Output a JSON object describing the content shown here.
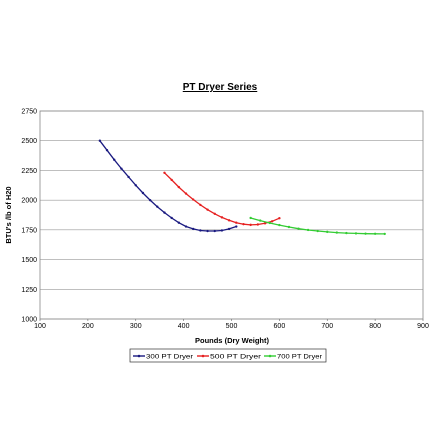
{
  "chart_data": {
    "type": "line",
    "title": "PT Dryer Series",
    "xlabel": "Pounds (Dry Weight)",
    "ylabel": "BTU's /lb of H20",
    "xlim": [
      100,
      900
    ],
    "ylim": [
      1000,
      2750
    ],
    "xticks": [
      100,
      200,
      300,
      400,
      500,
      600,
      700,
      800,
      900
    ],
    "yticks": [
      1000,
      1250,
      1500,
      1750,
      2000,
      2250,
      2500,
      2750
    ],
    "x_tick_labels": [
      "100",
      "200",
      "300",
      "400",
      "500",
      "600",
      "700",
      "800",
      "900"
    ],
    "y_tick_labels": [
      "1000",
      "1250",
      "1500",
      "1750",
      "2000",
      "2250",
      "2500",
      "2750"
    ],
    "grid": "horizontal",
    "legend_position": "bottom",
    "series": [
      {
        "name": "300 PT Dryer",
        "color": "#1a1a80",
        "x": [
          225,
          240,
          255,
          270,
          285,
          300,
          315,
          330,
          345,
          360,
          375,
          390,
          405,
          420,
          435,
          450,
          465,
          480,
          495,
          510
        ],
        "y": [
          2500,
          2420,
          2340,
          2265,
          2195,
          2125,
          2060,
          2000,
          1945,
          1895,
          1850,
          1810,
          1778,
          1758,
          1745,
          1740,
          1740,
          1745,
          1758,
          1778
        ]
      },
      {
        "name": "500 PT Dryer",
        "color": "#e62020",
        "x": [
          360,
          375,
          390,
          405,
          420,
          435,
          450,
          465,
          480,
          495,
          510,
          525,
          540,
          555,
          570,
          585,
          600
        ],
        "y": [
          2230,
          2170,
          2110,
          2055,
          2005,
          1960,
          1920,
          1885,
          1855,
          1830,
          1810,
          1798,
          1792,
          1795,
          1805,
          1822,
          1848
        ]
      },
      {
        "name": "700 PT Dryer",
        "color": "#33cc33",
        "x": [
          540,
          560,
          580,
          600,
          620,
          640,
          660,
          680,
          700,
          720,
          740,
          760,
          780,
          800,
          820
        ],
        "y": [
          1850,
          1828,
          1808,
          1790,
          1774,
          1760,
          1749,
          1740,
          1733,
          1727,
          1723,
          1720,
          1718,
          1717,
          1716
        ]
      }
    ]
  }
}
